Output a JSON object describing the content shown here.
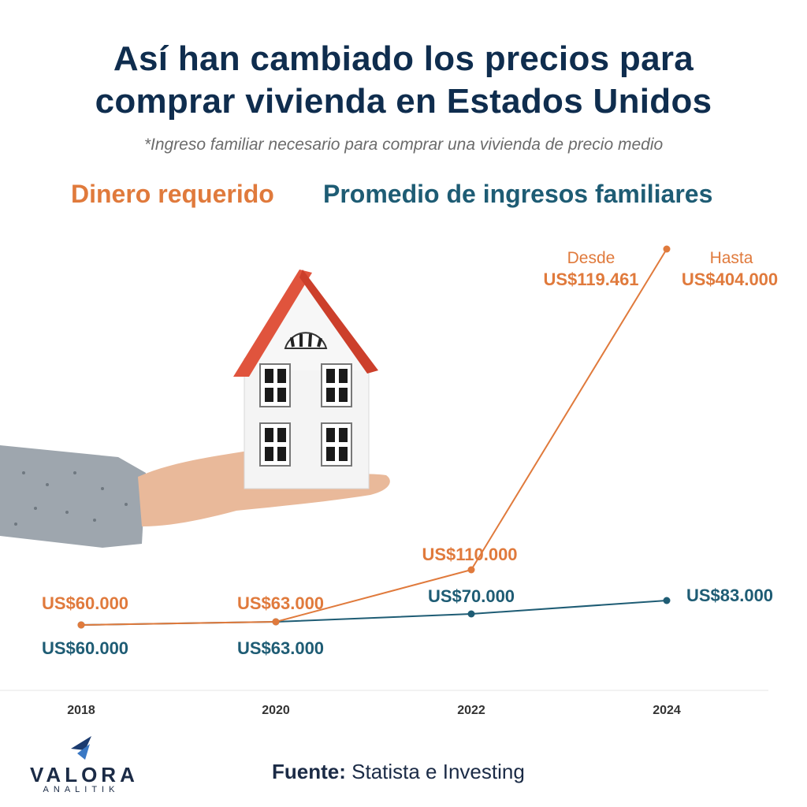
{
  "title_line1": "Así han cambiado los precios para",
  "title_line2": "comprar vivienda en Estados Unidos",
  "subtitle": "*Ingreso familiar necesario para comprar una vivienda de precio medio",
  "source": {
    "label": "Fuente:",
    "text": "Statista e Investing"
  },
  "logo": {
    "word": "VALORA",
    "sub": "ANALITIK"
  },
  "chart_data": {
    "type": "line",
    "categories": [
      "2018",
      "2020",
      "2022",
      "2024"
    ],
    "series": [
      {
        "name": "Dinero requerido",
        "color": "#e07a3c",
        "values": [
          60000,
          63000,
          110000,
          404000
        ],
        "labels": [
          "US$60.000",
          "US$63.000",
          "US$110.000",
          "US$404.000"
        ]
      },
      {
        "name": "Promedio de ingresos familiares",
        "color": "#1e5c74",
        "values": [
          60000,
          63000,
          70000,
          83000
        ],
        "labels": [
          "US$60.000",
          "US$63.000",
          "US$70.000",
          "US$83.000"
        ]
      }
    ],
    "annotations": {
      "desde_label": "Desde",
      "desde_value": "US$119.461",
      "hasta_label": "Hasta"
    },
    "legend": "top"
  }
}
